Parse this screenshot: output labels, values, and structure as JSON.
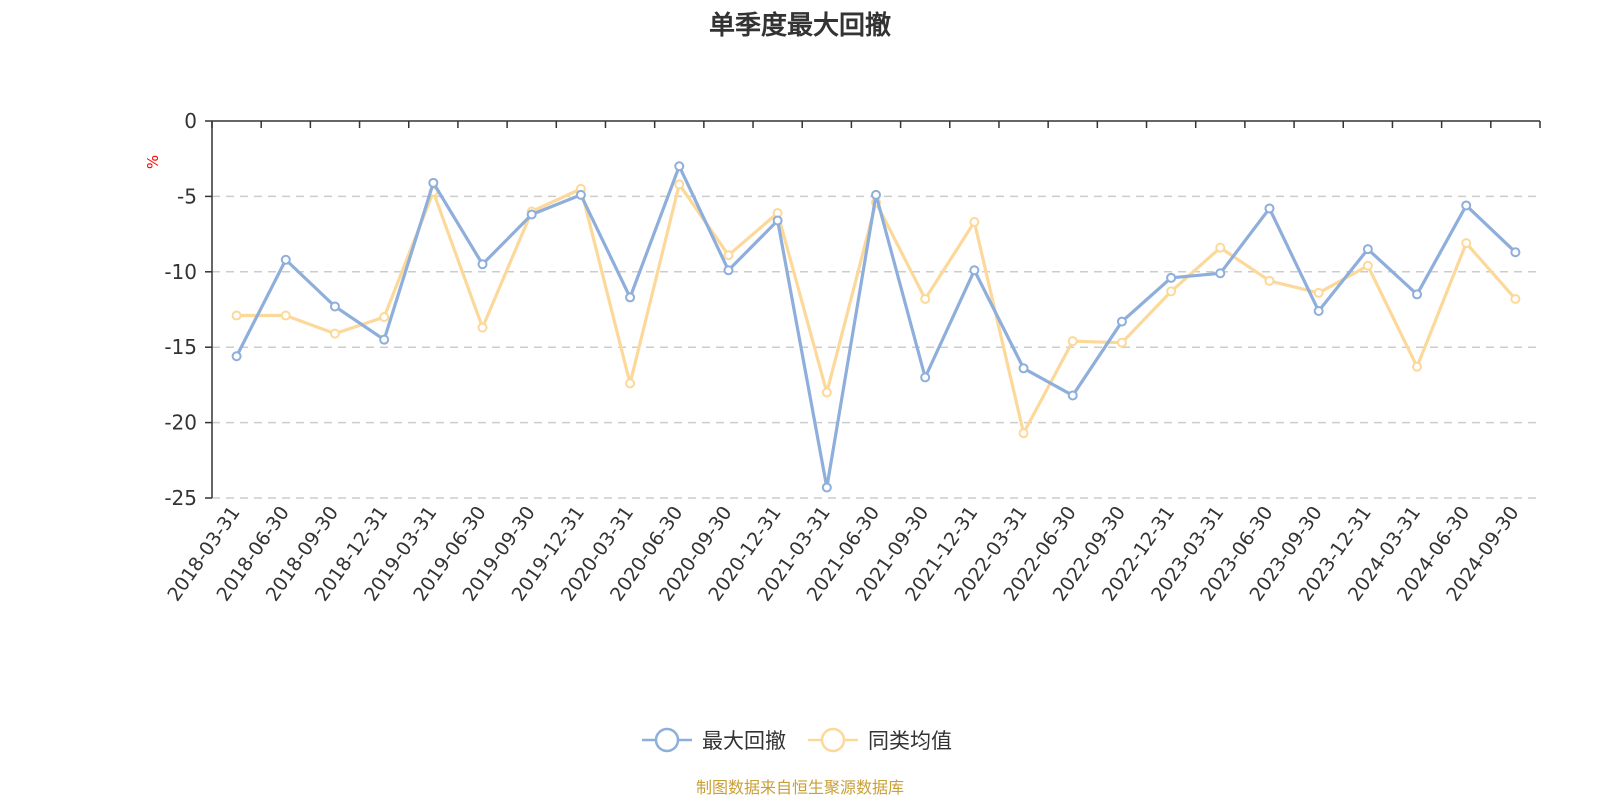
{
  "chart_data": {
    "type": "line",
    "title": "单季度最大回撤",
    "ylabel": "%",
    "ylim": [
      -25,
      0
    ],
    "yticks": [
      0,
      -5,
      -10,
      -15,
      -20,
      -25
    ],
    "grid": true,
    "legend_position": "bottom",
    "categories": [
      "2018-03-31",
      "2018-06-30",
      "2018-09-30",
      "2018-12-31",
      "2019-03-31",
      "2019-06-30",
      "2019-09-30",
      "2019-12-31",
      "2020-03-31",
      "2020-06-30",
      "2020-09-30",
      "2020-12-31",
      "2021-03-31",
      "2021-06-30",
      "2021-09-30",
      "2021-12-31",
      "2022-03-31",
      "2022-06-30",
      "2022-09-30",
      "2022-12-31",
      "2023-03-31",
      "2023-06-30",
      "2023-09-30",
      "2023-12-31",
      "2024-03-31",
      "2024-06-30",
      "2024-09-30"
    ],
    "series": [
      {
        "name": "最大回撤",
        "color": "#8eaedb",
        "values": [
          -15.6,
          -9.2,
          -12.3,
          -14.5,
          -4.1,
          -9.5,
          -6.2,
          -4.9,
          -11.7,
          -3.0,
          -9.9,
          -6.6,
          -24.3,
          -4.9,
          -17.0,
          -9.9,
          -16.4,
          -18.2,
          -13.3,
          -10.4,
          -10.1,
          -5.8,
          -12.6,
          -8.5,
          -11.5,
          -5.6,
          -8.7
        ]
      },
      {
        "name": "同类均值",
        "color": "#fcd99a",
        "values": [
          -12.9,
          -12.9,
          -14.1,
          -13.0,
          -4.7,
          -13.7,
          -6.0,
          -4.5,
          -17.4,
          -4.2,
          -8.9,
          -6.1,
          -18.0,
          -5.4,
          -11.8,
          -6.7,
          -20.7,
          -14.6,
          -14.7,
          -11.3,
          -8.4,
          -10.6,
          -11.4,
          -9.6,
          -16.3,
          -8.1,
          -11.8
        ]
      }
    ]
  },
  "footer": {
    "source_text": "制图数据来自恒生聚源数据库",
    "source_color": "#c8a038"
  },
  "unit_color": "#ff0000"
}
